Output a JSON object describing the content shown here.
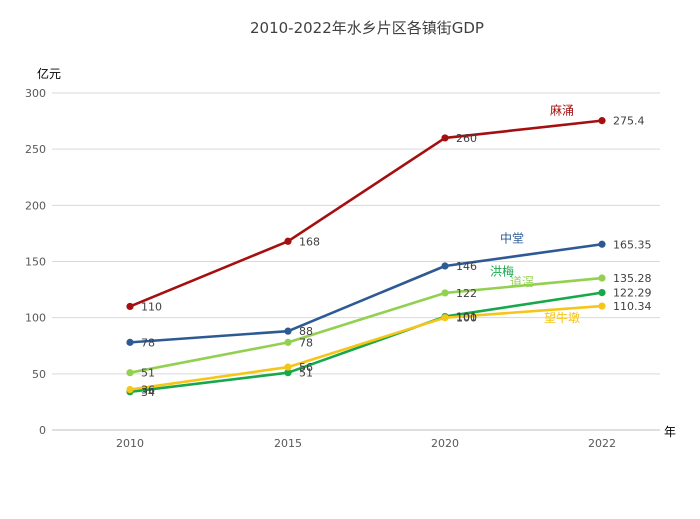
{
  "chart_data": {
    "type": "line",
    "title": "2010-2022年水乡片区各镇街GDP",
    "ylabel": "亿元",
    "xlabel": "年",
    "categories": [
      "2010",
      "2015",
      "2020",
      "2022"
    ],
    "ylim": [
      0,
      300
    ],
    "yticks": [
      0,
      50,
      100,
      150,
      200,
      250,
      300
    ],
    "grid": true,
    "legend": "inline series names near line ends",
    "series": [
      {
        "name": "麻涌",
        "color": "#a50f0f",
        "values": [
          110,
          168,
          260,
          275.4
        ],
        "labels": [
          "110",
          "168",
          "260",
          "275.4"
        ]
      },
      {
        "name": "中堂",
        "color": "#2e5a94",
        "values": [
          78,
          88,
          146,
          165.35
        ],
        "labels": [
          "78",
          "88",
          "146",
          "165.35"
        ]
      },
      {
        "name": "道滘",
        "color": "#92d050",
        "values": [
          51,
          78,
          122,
          135.28
        ],
        "labels": [
          "51",
          "78",
          "122",
          "135.28"
        ]
      },
      {
        "name": "洪梅",
        "color": "#16a84a",
        "values": [
          34,
          51,
          101,
          122.29
        ],
        "labels": [
          "34",
          "51",
          "101",
          "122.29"
        ]
      },
      {
        "name": "望牛墩",
        "color": "#f5c518",
        "values": [
          36,
          56,
          100,
          110.34
        ],
        "labels": [
          "36",
          "56",
          "100",
          "110.34"
        ]
      }
    ]
  }
}
